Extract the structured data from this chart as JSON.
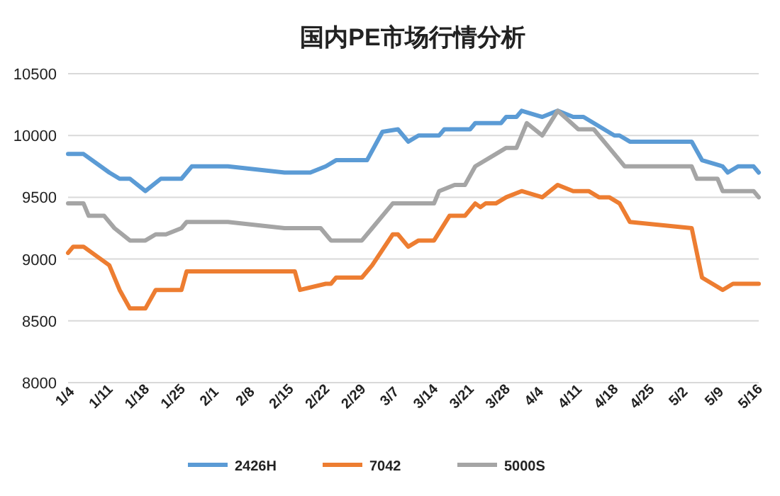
{
  "chart_data": {
    "type": "line",
    "title": "国内PE市场行情分析",
    "xlim": [
      "--01-04",
      "--05-17"
    ],
    "xticks": [
      {
        "value": "--01-04",
        "label": "1/4"
      },
      {
        "value": "--01-11",
        "label": "1/11"
      },
      {
        "value": "--01-18",
        "label": "1/18"
      },
      {
        "value": "--01-25",
        "label": "1/25"
      },
      {
        "value": "--02-01",
        "label": "2/1"
      },
      {
        "value": "--02-08",
        "label": "2/8"
      },
      {
        "value": "--02-15",
        "label": "2/15"
      },
      {
        "value": "--02-22",
        "label": "2/22"
      },
      {
        "value": "--02-29",
        "label": "2/29"
      },
      {
        "value": "--03-07",
        "label": "3/7"
      },
      {
        "value": "--03-14",
        "label": "3/14"
      },
      {
        "value": "--03-21",
        "label": "3/21"
      },
      {
        "value": "--03-28",
        "label": "3/28"
      },
      {
        "value": "--04-04",
        "label": "4/4"
      },
      {
        "value": "--04-11",
        "label": "4/11"
      },
      {
        "value": "--04-18",
        "label": "4/18"
      },
      {
        "value": "--04-25",
        "label": "4/25"
      },
      {
        "value": "--05-02",
        "label": "5/2"
      },
      {
        "value": "--05-09",
        "label": "5/9"
      },
      {
        "value": "--05-16",
        "label": "5/16"
      }
    ],
    "ylim": [
      8000,
      10500
    ],
    "yticks": [
      8000,
      8500,
      9000,
      9500,
      10000,
      10500
    ],
    "grid": "y",
    "legend": "bottom",
    "marker": "none",
    "line_style": "solid",
    "series": [
      {
        "name": "2426H",
        "color": "#5b9bd5",
        "x": [
          "--01-04",
          "--01-07",
          "--01-12",
          "--01-14",
          "--01-16",
          "--01-19",
          "--01-22",
          "--01-26",
          "--01-28",
          "--02-04",
          "--02-15",
          "--02-20",
          "--02-23",
          "--02-25",
          "--03-02",
          "--03-05",
          "--03-08",
          "--03-10",
          "--03-12",
          "--03-16",
          "--03-17",
          "--03-22",
          "--03-23",
          "--03-28",
          "--03-29",
          "--03-31",
          "--04-01",
          "--04-05",
          "--04-08",
          "--04-11",
          "--04-13",
          "--04-15",
          "--04-19",
          "--04-20",
          "--04-22",
          "--05-04",
          "--05-06",
          "--05-10",
          "--05-11",
          "--05-13",
          "--05-16",
          "--05-17"
        ],
        "values": [
          9850,
          9850,
          9700,
          9650,
          9650,
          9550,
          9650,
          9650,
          9750,
          9750,
          9700,
          9700,
          9750,
          9800,
          9800,
          10030,
          10050,
          9950,
          10000,
          10000,
          10050,
          10050,
          10100,
          10100,
          10150,
          10150,
          10200,
          10150,
          10200,
          10150,
          10150,
          10100,
          10000,
          10000,
          9950,
          9950,
          9800,
          9750,
          9700,
          9750,
          9750,
          9700
        ]
      },
      {
        "name": "7042",
        "color": "#ed7d31",
        "x": [
          "--01-04",
          "--01-05",
          "--01-07",
          "--01-12",
          "--01-14",
          "--01-16",
          "--01-19",
          "--01-21",
          "--01-26",
          "--01-27",
          "--02-17",
          "--02-18",
          "--02-23",
          "--02-24",
          "--02-25",
          "--03-01",
          "--03-03",
          "--03-07",
          "--03-08",
          "--03-10",
          "--03-12",
          "--03-15",
          "--03-18",
          "--03-21",
          "--03-23",
          "--03-24",
          "--03-25",
          "--03-27",
          "--03-29",
          "--04-01",
          "--04-05",
          "--04-08",
          "--04-11",
          "--04-14",
          "--04-16",
          "--04-18",
          "--04-20",
          "--04-22",
          "--05-04",
          "--05-06",
          "--05-10",
          "--05-12",
          "--05-17"
        ],
        "values": [
          9050,
          9100,
          9100,
          8950,
          8750,
          8600,
          8600,
          8750,
          8750,
          8900,
          8900,
          8750,
          8800,
          8800,
          8850,
          8850,
          8950,
          9200,
          9200,
          9100,
          9150,
          9150,
          9350,
          9350,
          9450,
          9420,
          9450,
          9450,
          9500,
          9550,
          9500,
          9600,
          9550,
          9550,
          9500,
          9500,
          9450,
          9300,
          9250,
          8850,
          8750,
          8800,
          8800
        ]
      },
      {
        "name": "5000S",
        "color": "#a5a5a5",
        "x": [
          "--01-04",
          "--01-07",
          "--01-08",
          "--01-11",
          "--01-13",
          "--01-16",
          "--01-19",
          "--01-21",
          "--01-23",
          "--01-26",
          "--01-27",
          "--02-04",
          "--02-15",
          "--02-22",
          "--02-24",
          "--03-01",
          "--03-03",
          "--03-07",
          "--03-10",
          "--03-15",
          "--03-16",
          "--03-19",
          "--03-21",
          "--03-23",
          "--03-27",
          "--03-29",
          "--03-31",
          "--04-02",
          "--04-05",
          "--04-08",
          "--04-12",
          "--04-15",
          "--04-18",
          "--04-21",
          "--05-04",
          "--05-05",
          "--05-09",
          "--05-10",
          "--05-16",
          "--05-17"
        ],
        "values": [
          9450,
          9450,
          9350,
          9350,
          9250,
          9150,
          9150,
          9200,
          9200,
          9250,
          9300,
          9300,
          9250,
          9250,
          9150,
          9150,
          9250,
          9450,
          9450,
          9450,
          9550,
          9600,
          9600,
          9750,
          9850,
          9900,
          9900,
          10100,
          10000,
          10200,
          10050,
          10050,
          9900,
          9750,
          9750,
          9650,
          9650,
          9550,
          9550,
          9500
        ]
      }
    ]
  }
}
